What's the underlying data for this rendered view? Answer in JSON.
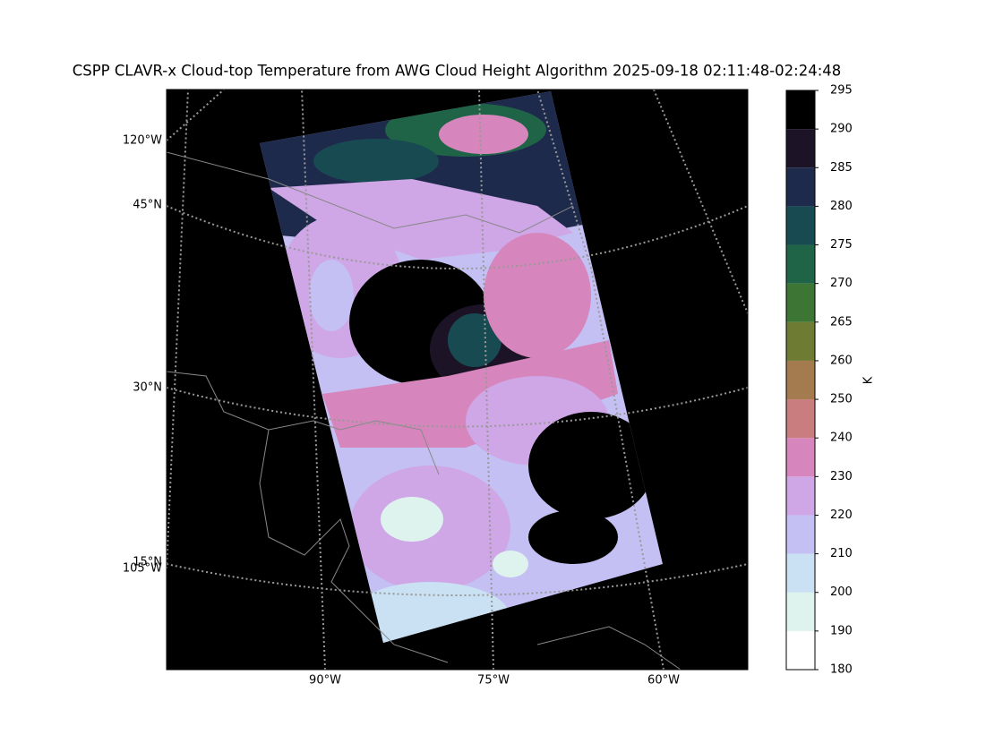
{
  "title": "CSPP CLAVR-x Cloud-top Temperature from AWG Cloud Height Algorithm 2025-09-18 02:11:48-02:24:48",
  "map": {
    "left_labels": [
      "120°W",
      "45°N",
      "30°N",
      "15°N",
      "105°W"
    ],
    "bottom_labels": [
      "90°W",
      "75°W",
      "60°W"
    ]
  },
  "colorbar": {
    "label": "K",
    "ticks": [
      180,
      190,
      200,
      210,
      220,
      230,
      240,
      250,
      260,
      265,
      270,
      275,
      280,
      285,
      290,
      295
    ],
    "colors": [
      "#ffffff",
      "#dff3ee",
      "#c9e1f2",
      "#c4c0f3",
      "#cfa6e6",
      "#d686bd",
      "#c97d7f",
      "#a47b4e",
      "#6e7b33",
      "#3d7534",
      "#1f6447",
      "#184a52",
      "#1e2a4c",
      "#1c1426",
      "#000000"
    ]
  }
}
